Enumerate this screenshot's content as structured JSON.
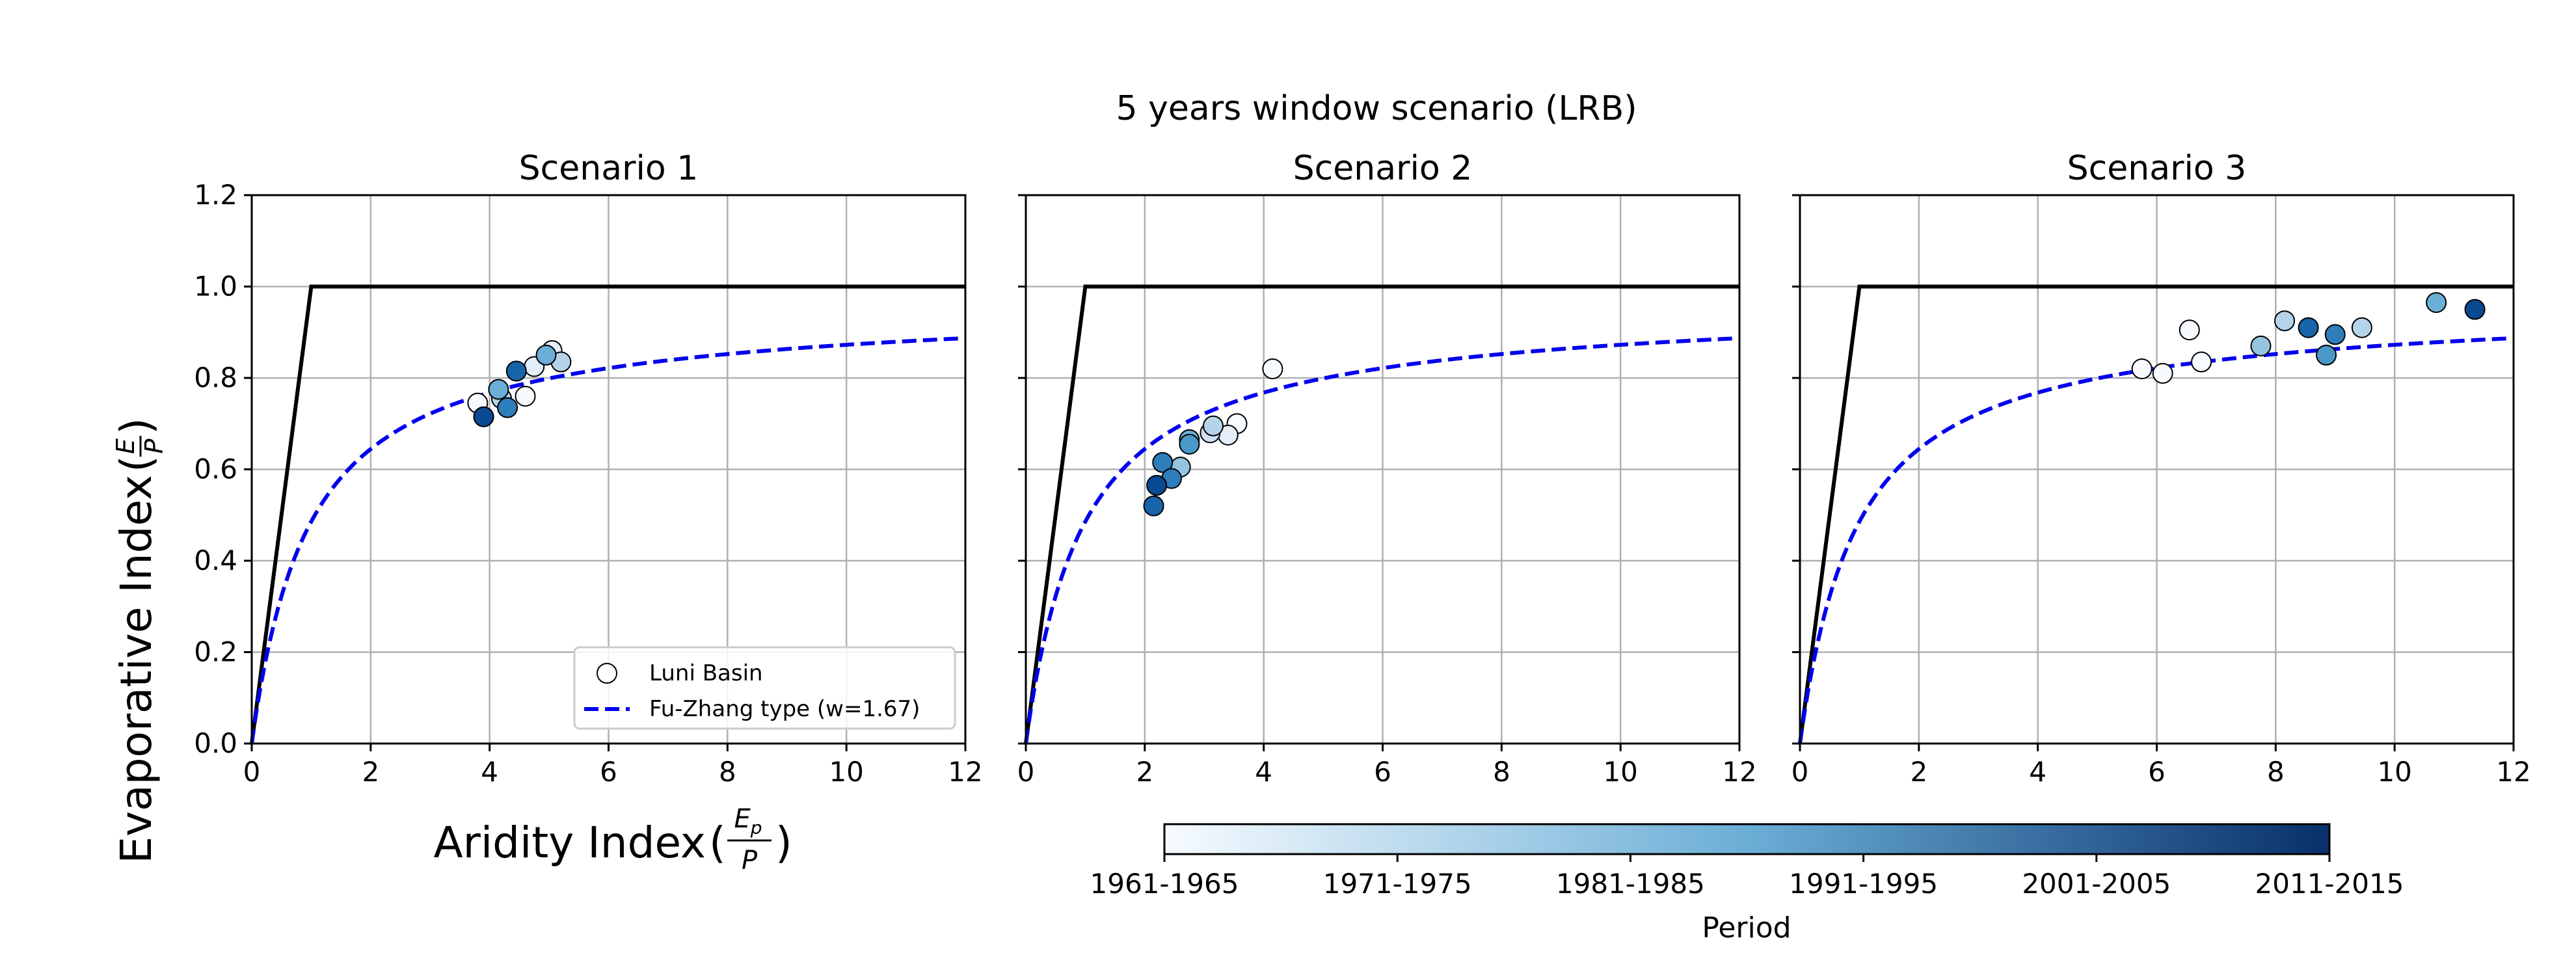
{
  "figure": {
    "suptitle": "5 years window scenario (LRB)",
    "ylabel_text": "Evaporative Index",
    "ylabel_frac_num": "E",
    "ylabel_frac_den": "P",
    "xlabel_text": "Aridity Index",
    "xlabel_frac_num": "E",
    "xlabel_frac_num_sub": "p",
    "xlabel_frac_den": "P"
  },
  "legend": {
    "entries": [
      "Luni Basin",
      "Fu-Zhang type (w=1.67)"
    ]
  },
  "colorbar": {
    "label": "Period",
    "ticks": [
      "1961-1965",
      "1971-1975",
      "1981-1985",
      "1991-1995",
      "2001-2005",
      "2011-2015"
    ],
    "colormap": "Blues",
    "color_start": "#f7fbff",
    "color_mid": "#6baed6",
    "color_end": "#08306b"
  },
  "chart_data": [
    {
      "type": "scatter",
      "title": "Scenario 1",
      "xlim": [
        0,
        12
      ],
      "ylim": [
        0.0,
        1.2
      ],
      "xticks": [
        0,
        2,
        4,
        6,
        8,
        10,
        12
      ],
      "yticks": [
        0.0,
        0.2,
        0.4,
        0.6,
        0.8,
        1.0,
        1.2
      ],
      "grid": true,
      "legend_position": "lower right",
      "limits_line": [
        [
          0,
          0
        ],
        [
          1,
          1
        ],
        [
          12,
          1
        ]
      ],
      "fu_zhang_w": 1.67,
      "points": [
        {
          "x": 3.8,
          "y": 0.745,
          "period_index": 0
        },
        {
          "x": 4.6,
          "y": 0.76,
          "period_index": 0
        },
        {
          "x": 4.75,
          "y": 0.825,
          "period_index": 1
        },
        {
          "x": 5.05,
          "y": 0.86,
          "period_index": 1
        },
        {
          "x": 4.2,
          "y": 0.755,
          "period_index": 3
        },
        {
          "x": 5.2,
          "y": 0.835,
          "period_index": 3
        },
        {
          "x": 4.15,
          "y": 0.775,
          "period_index": 5
        },
        {
          "x": 4.95,
          "y": 0.85,
          "period_index": 5
        },
        {
          "x": 4.3,
          "y": 0.735,
          "period_index": 7
        },
        {
          "x": 4.45,
          "y": 0.815,
          "period_index": 8
        },
        {
          "x": 3.9,
          "y": 0.715,
          "period_index": 9
        }
      ]
    },
    {
      "type": "scatter",
      "title": "Scenario 2",
      "xlim": [
        0,
        12
      ],
      "ylim": [
        0.0,
        1.2
      ],
      "xticks": [
        0,
        2,
        4,
        6,
        8,
        10,
        12
      ],
      "yticks": [
        0.0,
        0.2,
        0.4,
        0.6,
        0.8,
        1.0,
        1.2
      ],
      "grid": true,
      "limits_line": [
        [
          0,
          0
        ],
        [
          1,
          1
        ],
        [
          12,
          1
        ]
      ],
      "fu_zhang_w": 1.67,
      "points": [
        {
          "x": 4.15,
          "y": 0.82,
          "period_index": 0
        },
        {
          "x": 3.55,
          "y": 0.7,
          "period_index": 0
        },
        {
          "x": 3.4,
          "y": 0.675,
          "period_index": 1
        },
        {
          "x": 3.1,
          "y": 0.68,
          "period_index": 2
        },
        {
          "x": 3.15,
          "y": 0.695,
          "period_index": 3
        },
        {
          "x": 2.6,
          "y": 0.605,
          "period_index": 4
        },
        {
          "x": 2.75,
          "y": 0.665,
          "period_index": 5
        },
        {
          "x": 2.75,
          "y": 0.655,
          "period_index": 6
        },
        {
          "x": 2.3,
          "y": 0.615,
          "period_index": 7
        },
        {
          "x": 2.45,
          "y": 0.58,
          "period_index": 7
        },
        {
          "x": 2.2,
          "y": 0.565,
          "period_index": 9
        },
        {
          "x": 2.15,
          "y": 0.52,
          "period_index": 8
        }
      ]
    },
    {
      "type": "scatter",
      "title": "Scenario 3",
      "xlim": [
        0,
        12
      ],
      "ylim": [
        0.0,
        1.2
      ],
      "xticks": [
        0,
        2,
        4,
        6,
        8,
        10,
        12
      ],
      "yticks": [
        0.0,
        0.2,
        0.4,
        0.6,
        0.8,
        1.0,
        1.2
      ],
      "grid": true,
      "limits_line": [
        [
          0,
          0
        ],
        [
          1,
          1
        ],
        [
          12,
          1
        ]
      ],
      "fu_zhang_w": 1.67,
      "points": [
        {
          "x": 5.75,
          "y": 0.82,
          "period_index": 0
        },
        {
          "x": 6.1,
          "y": 0.81,
          "period_index": 0
        },
        {
          "x": 6.55,
          "y": 0.905,
          "period_index": 0
        },
        {
          "x": 6.75,
          "y": 0.835,
          "period_index": 0
        },
        {
          "x": 7.75,
          "y": 0.87,
          "period_index": 4
        },
        {
          "x": 8.15,
          "y": 0.925,
          "period_index": 3
        },
        {
          "x": 8.55,
          "y": 0.91,
          "period_index": 8
        },
        {
          "x": 8.85,
          "y": 0.85,
          "period_index": 6
        },
        {
          "x": 9.0,
          "y": 0.895,
          "period_index": 7
        },
        {
          "x": 9.45,
          "y": 0.91,
          "period_index": 3
        },
        {
          "x": 10.7,
          "y": 0.965,
          "period_index": 5
        },
        {
          "x": 11.35,
          "y": 0.95,
          "period_index": 9
        }
      ]
    }
  ]
}
